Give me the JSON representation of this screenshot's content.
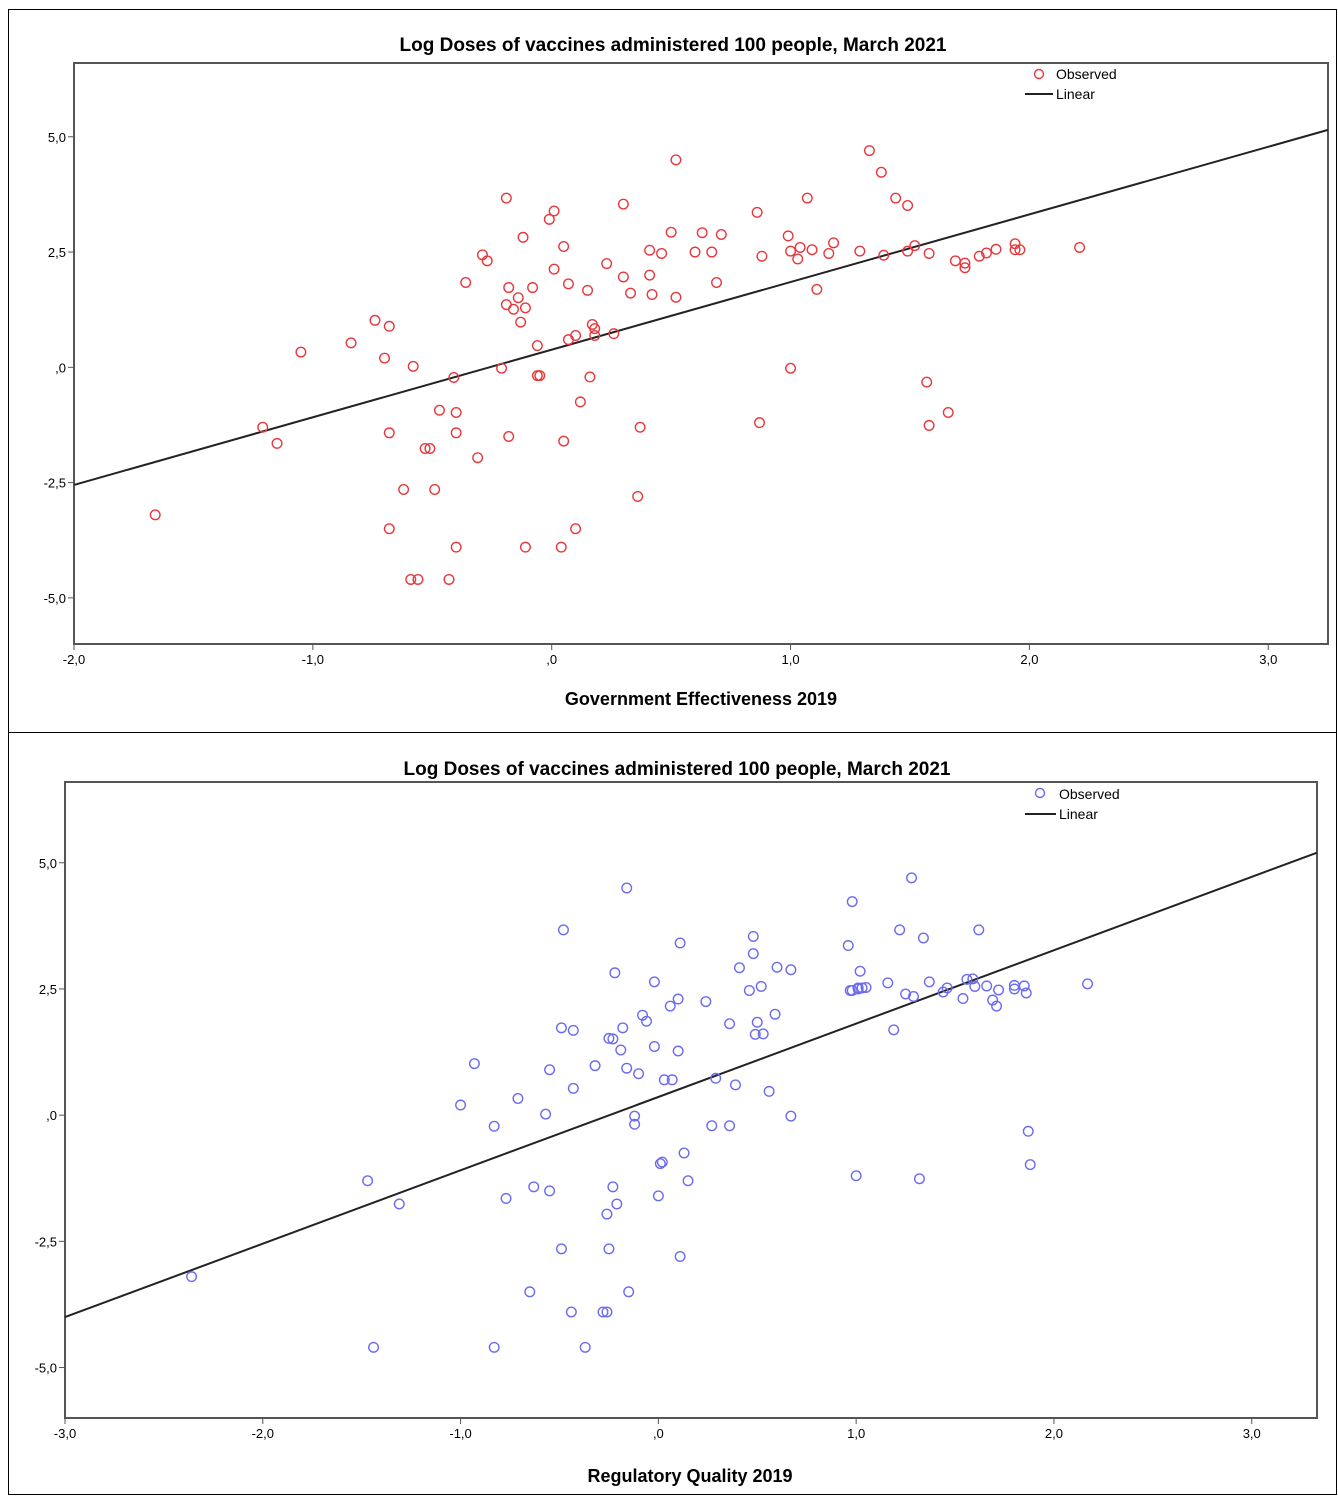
{
  "chart_data": [
    {
      "type": "scatter",
      "title": "Log Doses of vaccines administered 100 people,  March 2021",
      "xlabel": "Government Effectiveness 2019",
      "ylabel": "",
      "xlim": [
        -2.0,
        3.25
      ],
      "ylim": [
        -6.0,
        6.6
      ],
      "xticks": [
        -2.0,
        -1.0,
        0.0,
        1.0,
        2.0,
        3.0
      ],
      "xtick_labels": [
        "-2,0",
        "-1,0",
        ",0",
        "1,0",
        "2,0",
        "3,0"
      ],
      "yticks": [
        5.0,
        2.5,
        0.0,
        -2.5,
        -5.0
      ],
      "ytick_labels": [
        "5,0",
        "2,5",
        ",0",
        "-2,5",
        "-5,0"
      ],
      "legend": {
        "position": "top-right",
        "entries": [
          "Observed",
          "Linear"
        ]
      },
      "marker_color": "#e8383c",
      "line_color": "#222222",
      "fit_line": {
        "x": [
          -2.0,
          3.25
        ],
        "y": [
          -2.55,
          5.15
        ]
      },
      "series": [
        {
          "name": "Observed",
          "points": [
            [
              -1.66,
              -3.2
            ],
            [
              -1.21,
              -1.3
            ],
            [
              -1.15,
              -1.65
            ],
            [
              -1.05,
              0.33
            ],
            [
              -0.84,
              0.53
            ],
            [
              -0.74,
              1.02
            ],
            [
              -0.7,
              0.2
            ],
            [
              -0.68,
              0.89
            ],
            [
              -0.68,
              -1.42
            ],
            [
              -0.68,
              -3.5
            ],
            [
              -0.62,
              -2.65
            ],
            [
              -0.58,
              0.02
            ],
            [
              -0.59,
              -4.6
            ],
            [
              -0.56,
              -4.6
            ],
            [
              -0.53,
              -1.76
            ],
            [
              -0.51,
              -1.76
            ],
            [
              -0.49,
              -2.65
            ],
            [
              -0.47,
              -0.93
            ],
            [
              -0.41,
              -0.22
            ],
            [
              -0.4,
              -0.98
            ],
            [
              -0.4,
              -1.42
            ],
            [
              -0.4,
              -3.9
            ],
            [
              -0.43,
              -4.6
            ],
            [
              -0.36,
              1.84
            ],
            [
              -0.31,
              -1.96
            ],
            [
              -0.29,
              2.44
            ],
            [
              -0.27,
              2.31
            ],
            [
              -0.21,
              -0.02
            ],
            [
              -0.19,
              3.67
            ],
            [
              -0.19,
              1.36
            ],
            [
              -0.18,
              1.73
            ],
            [
              -0.18,
              -1.5
            ],
            [
              -0.16,
              1.26
            ],
            [
              -0.14,
              1.51
            ],
            [
              -0.13,
              0.98
            ],
            [
              -0.12,
              2.82
            ],
            [
              -0.11,
              1.29
            ],
            [
              -0.11,
              -3.9
            ],
            [
              -0.08,
              1.73
            ],
            [
              -0.06,
              0.47
            ],
            [
              -0.06,
              -0.18
            ],
            [
              -0.05,
              -0.18
            ],
            [
              -0.01,
              3.21
            ],
            [
              0.01,
              3.39
            ],
            [
              0.01,
              2.13
            ],
            [
              0.04,
              -3.9
            ],
            [
              0.05,
              2.62
            ],
            [
              0.05,
              -1.6
            ],
            [
              0.07,
              1.81
            ],
            [
              0.07,
              0.6
            ],
            [
              0.1,
              0.69
            ],
            [
              0.1,
              -3.5
            ],
            [
              0.12,
              -0.75
            ],
            [
              0.15,
              1.67
            ],
            [
              0.16,
              -0.21
            ],
            [
              0.17,
              0.93
            ],
            [
              0.18,
              0.84
            ],
            [
              0.18,
              0.69
            ],
            [
              0.26,
              0.73
            ],
            [
              0.23,
              2.25
            ],
            [
              0.3,
              3.54
            ],
            [
              0.3,
              1.96
            ],
            [
              0.33,
              1.61
            ],
            [
              0.36,
              -2.8
            ],
            [
              0.37,
              -1.3
            ],
            [
              0.41,
              2.54
            ],
            [
              0.41,
              2.0
            ],
            [
              0.42,
              1.58
            ],
            [
              0.46,
              2.47
            ],
            [
              0.5,
              2.93
            ],
            [
              0.52,
              4.5
            ],
            [
              0.52,
              1.52
            ],
            [
              0.6,
              2.5
            ],
            [
              0.63,
              2.92
            ],
            [
              0.67,
              2.5
            ],
            [
              0.69,
              1.84
            ],
            [
              0.71,
              2.88
            ],
            [
              0.86,
              3.36
            ],
            [
              0.87,
              -1.2
            ],
            [
              0.88,
              2.41
            ],
            [
              0.99,
              2.85
            ],
            [
              1.0,
              2.52
            ],
            [
              1.0,
              -0.02
            ],
            [
              1.03,
              2.35
            ],
            [
              1.04,
              2.6
            ],
            [
              1.07,
              3.67
            ],
            [
              1.09,
              2.55
            ],
            [
              1.11,
              1.69
            ],
            [
              1.16,
              2.47
            ],
            [
              1.18,
              2.7
            ],
            [
              1.29,
              2.52
            ],
            [
              1.33,
              4.7
            ],
            [
              1.38,
              4.23
            ],
            [
              1.39,
              2.43
            ],
            [
              1.44,
              3.67
            ],
            [
              1.49,
              3.51
            ],
            [
              1.49,
              2.52
            ],
            [
              1.52,
              2.64
            ],
            [
              1.57,
              -0.32
            ],
            [
              1.58,
              -1.26
            ],
            [
              1.58,
              2.47
            ],
            [
              1.66,
              -0.98
            ],
            [
              1.69,
              2.31
            ],
            [
              1.73,
              2.16
            ],
            [
              1.73,
              2.26
            ],
            [
              1.79,
              2.41
            ],
            [
              1.82,
              2.48
            ],
            [
              1.86,
              2.56
            ],
            [
              1.94,
              2.55
            ],
            [
              1.94,
              2.68
            ],
            [
              1.96,
              2.55
            ],
            [
              2.21,
              2.6
            ]
          ]
        }
      ]
    },
    {
      "type": "scatter",
      "title": "Log Doses of vaccines administered 100 people,  March 2021",
      "xlabel": "Regulatory Quality 2019",
      "ylabel": "",
      "xlim": [
        -3.0,
        3.33
      ],
      "ylim": [
        -6.0,
        6.6
      ],
      "xticks": [
        -3.0,
        -2.0,
        -1.0,
        0.0,
        1.0,
        2.0,
        3.0
      ],
      "xtick_labels": [
        "-3,0",
        "-2,0",
        "-1,0",
        ",0",
        "1,0",
        "2,0",
        "3,0"
      ],
      "yticks": [
        5.0,
        2.5,
        0.0,
        -2.5,
        -5.0
      ],
      "ytick_labels": [
        "5,0",
        "2,5",
        ",0",
        "-2,5",
        "-5,0"
      ],
      "legend": {
        "position": "top-right",
        "entries": [
          "Observed",
          "Linear"
        ]
      },
      "marker_color": "#6b6bf2",
      "line_color": "#222222",
      "fit_line": {
        "x": [
          -3.0,
          3.33
        ],
        "y": [
          -4.0,
          5.2
        ]
      },
      "series": [
        {
          "name": "Observed",
          "points": [
            [
              -2.36,
              -3.2
            ],
            [
              -1.47,
              -1.3
            ],
            [
              -1.44,
              -4.6
            ],
            [
              -1.31,
              -1.76
            ],
            [
              -1.0,
              0.2
            ],
            [
              -0.93,
              1.02
            ],
            [
              -0.83,
              -0.22
            ],
            [
              -0.83,
              -4.6
            ],
            [
              -0.77,
              -1.65
            ],
            [
              -0.71,
              0.33
            ],
            [
              -0.65,
              -3.5
            ],
            [
              -0.63,
              -1.42
            ],
            [
              -0.57,
              0.02
            ],
            [
              -0.55,
              0.9
            ],
            [
              -0.55,
              -1.5
            ],
            [
              -0.49,
              1.73
            ],
            [
              -0.49,
              -2.65
            ],
            [
              -0.48,
              3.67
            ],
            [
              -0.43,
              1.68
            ],
            [
              -0.43,
              0.53
            ],
            [
              -0.44,
              -3.9
            ],
            [
              -0.37,
              -4.6
            ],
            [
              -0.32,
              0.98
            ],
            [
              -0.28,
              -3.9
            ],
            [
              -0.26,
              -3.9
            ],
            [
              -0.26,
              -1.96
            ],
            [
              -0.25,
              1.52
            ],
            [
              -0.25,
              -2.65
            ],
            [
              -0.23,
              1.51
            ],
            [
              -0.23,
              -1.42
            ],
            [
              -0.22,
              2.82
            ],
            [
              -0.21,
              -1.76
            ],
            [
              -0.19,
              1.29
            ],
            [
              -0.18,
              1.73
            ],
            [
              -0.16,
              0.93
            ],
            [
              -0.16,
              4.5
            ],
            [
              -0.15,
              -3.5
            ],
            [
              -0.12,
              -0.02
            ],
            [
              -0.12,
              -0.18
            ],
            [
              -0.1,
              0.82
            ],
            [
              -0.08,
              1.98
            ],
            [
              -0.06,
              1.86
            ],
            [
              -0.02,
              1.36
            ],
            [
              -0.02,
              2.64
            ],
            [
              0.0,
              -1.6
            ],
            [
              0.01,
              -0.96
            ],
            [
              0.02,
              -0.93
            ],
            [
              0.03,
              0.7
            ],
            [
              0.07,
              0.7
            ],
            [
              0.06,
              2.16
            ],
            [
              0.1,
              2.3
            ],
            [
              0.1,
              1.27
            ],
            [
              0.11,
              3.41
            ],
            [
              0.11,
              -2.8
            ],
            [
              0.13,
              -0.75
            ],
            [
              0.15,
              -1.3
            ],
            [
              0.24,
              2.25
            ],
            [
              0.27,
              -0.21
            ],
            [
              0.29,
              0.73
            ],
            [
              0.36,
              1.81
            ],
            [
              0.36,
              -0.21
            ],
            [
              0.39,
              0.6
            ],
            [
              0.41,
              2.92
            ],
            [
              0.46,
              2.47
            ],
            [
              0.48,
              3.54
            ],
            [
              0.48,
              3.2
            ],
            [
              0.49,
              1.6
            ],
            [
              0.5,
              1.84
            ],
            [
              0.52,
              2.55
            ],
            [
              0.53,
              1.61
            ],
            [
              0.56,
              0.47
            ],
            [
              0.59,
              2.0
            ],
            [
              0.6,
              2.93
            ],
            [
              0.67,
              2.88
            ],
            [
              0.67,
              -0.02
            ],
            [
              0.96,
              3.36
            ],
            [
              0.97,
              2.47
            ],
            [
              0.98,
              2.47
            ],
            [
              0.98,
              4.23
            ],
            [
              1.0,
              -1.2
            ],
            [
              1.01,
              2.52
            ],
            [
              1.01,
              2.5
            ],
            [
              1.02,
              2.85
            ],
            [
              1.03,
              2.52
            ],
            [
              1.05,
              2.53
            ],
            [
              1.16,
              2.62
            ],
            [
              1.19,
              1.69
            ],
            [
              1.22,
              3.67
            ],
            [
              1.25,
              2.4
            ],
            [
              1.28,
              4.7
            ],
            [
              1.29,
              2.35
            ],
            [
              1.32,
              -1.26
            ],
            [
              1.34,
              3.51
            ],
            [
              1.37,
              2.64
            ],
            [
              1.44,
              2.44
            ],
            [
              1.46,
              2.52
            ],
            [
              1.54,
              2.31
            ],
            [
              1.56,
              2.69
            ],
            [
              1.59,
              2.7
            ],
            [
              1.6,
              2.55
            ],
            [
              1.62,
              3.67
            ],
            [
              1.66,
              2.56
            ],
            [
              1.69,
              2.28
            ],
            [
              1.71,
              2.16
            ],
            [
              1.72,
              2.48
            ],
            [
              1.8,
              2.5
            ],
            [
              1.8,
              2.57
            ],
            [
              1.85,
              2.56
            ],
            [
              1.86,
              2.42
            ],
            [
              1.87,
              -0.32
            ],
            [
              1.88,
              -0.98
            ],
            [
              2.17,
              2.6
            ]
          ]
        }
      ]
    }
  ]
}
